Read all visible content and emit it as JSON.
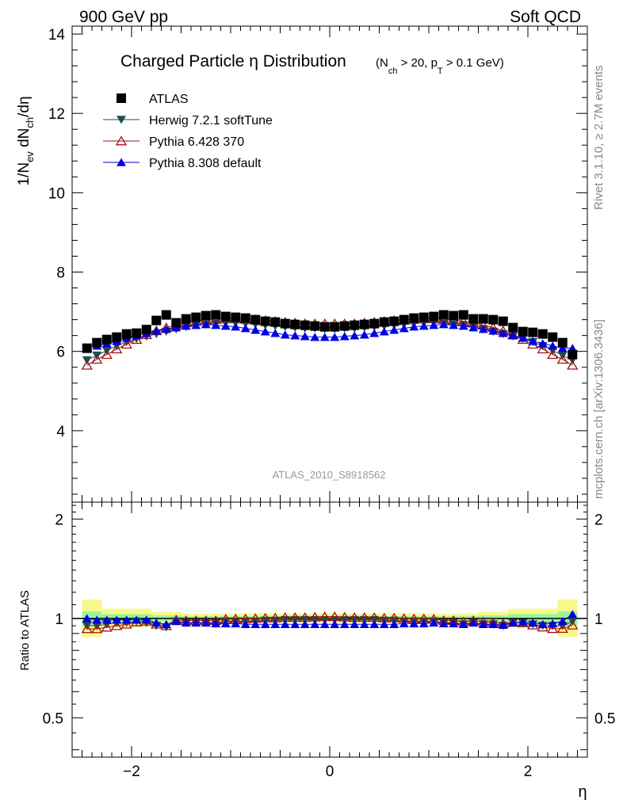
{
  "header": {
    "left": "900 GeV pp",
    "right": "Soft QCD",
    "plot_title": "Charged Particle η Distribution",
    "plot_title_cuts": "(N",
    "cut_sub_ch": "ch",
    "cut_mid": " > 20, p",
    "cut_sub_t": "T",
    "cut_end": " > 0.1 GeV)"
  },
  "side_text": {
    "rivet": "Rivet 3.1.10, ≥ 2.7M events",
    "mcplots": "mcplots.cern.ch [arXiv:1306.3436]"
  },
  "watermark": "ATLAS_2010_S8918562",
  "colors": {
    "atlas": "#000000",
    "herwig": "#1a5050",
    "pythia6": "#a01010",
    "pythia8": "#0000e0",
    "band_inner": "#9af59a",
    "band_outer": "#f8f88a"
  },
  "chart_data": [
    {
      "type": "scatter",
      "title": "Charged Particle η Distribution (N_ch > 20, p_T > 0.1 GeV)",
      "ylabel": "1/N_ev dN_ch/dη",
      "xlabel": "η",
      "xlim": [
        -2.6,
        2.6
      ],
      "ylim": [
        2.2,
        14.2
      ],
      "yticks": [
        4,
        6,
        8,
        10,
        12,
        14
      ],
      "legend_position": "top-left",
      "grid": false,
      "x": [
        -2.45,
        -2.35,
        -2.25,
        -2.15,
        -2.05,
        -1.95,
        -1.85,
        -1.75,
        -1.65,
        -1.55,
        -1.45,
        -1.35,
        -1.25,
        -1.15,
        -1.05,
        -0.95,
        -0.85,
        -0.75,
        -0.65,
        -0.55,
        -0.45,
        -0.35,
        -0.25,
        -0.15,
        -0.05,
        0.05,
        0.15,
        0.25,
        0.35,
        0.45,
        0.55,
        0.65,
        0.75,
        0.85,
        0.95,
        1.05,
        1.15,
        1.25,
        1.35,
        1.45,
        1.55,
        1.65,
        1.75,
        1.85,
        1.95,
        2.05,
        2.15,
        2.25,
        2.35,
        2.45
      ],
      "series": [
        {
          "name": "ATLAS",
          "marker": "square",
          "values": [
            6.08,
            6.22,
            6.3,
            6.36,
            6.44,
            6.46,
            6.55,
            6.78,
            6.92,
            6.72,
            6.82,
            6.86,
            6.9,
            6.92,
            6.88,
            6.86,
            6.84,
            6.8,
            6.76,
            6.74,
            6.7,
            6.68,
            6.66,
            6.64,
            6.62,
            6.62,
            6.64,
            6.66,
            6.68,
            6.7,
            6.74,
            6.76,
            6.8,
            6.84,
            6.86,
            6.88,
            6.92,
            6.9,
            6.92,
            6.82,
            6.82,
            6.8,
            6.76,
            6.6,
            6.5,
            6.48,
            6.44,
            6.36,
            6.22,
            5.92
          ]
        },
        {
          "name": "Herwig 7.2.1 softTune",
          "marker": "triangle-down",
          "values": [
            5.78,
            5.9,
            6.02,
            6.14,
            6.24,
            6.32,
            6.38,
            6.44,
            6.5,
            6.56,
            6.62,
            6.66,
            6.68,
            6.7,
            6.72,
            6.72,
            6.7,
            6.68,
            6.66,
            6.64,
            6.62,
            6.6,
            6.58,
            6.58,
            6.56,
            6.56,
            6.58,
            6.58,
            6.6,
            6.62,
            6.64,
            6.66,
            6.68,
            6.7,
            6.72,
            6.72,
            6.7,
            6.68,
            6.66,
            6.62,
            6.56,
            6.5,
            6.44,
            6.38,
            6.32,
            6.24,
            6.14,
            6.02,
            5.9,
            5.78
          ]
        },
        {
          "name": "Pythia 6.428 370",
          "marker": "triangle-up-open",
          "values": [
            5.65,
            5.8,
            5.92,
            6.06,
            6.18,
            6.3,
            6.42,
            6.52,
            6.6,
            6.66,
            6.72,
            6.76,
            6.8,
            6.82,
            6.84,
            6.84,
            6.82,
            6.8,
            6.78,
            6.76,
            6.74,
            6.72,
            6.7,
            6.7,
            6.7,
            6.7,
            6.7,
            6.7,
            6.72,
            6.74,
            6.76,
            6.78,
            6.8,
            6.82,
            6.84,
            6.84,
            6.82,
            6.8,
            6.76,
            6.72,
            6.66,
            6.6,
            6.52,
            6.42,
            6.3,
            6.18,
            6.06,
            5.92,
            5.8,
            5.65
          ]
        },
        {
          "name": "Pythia 8.308 default",
          "marker": "triangle-up",
          "values": [
            6.08,
            6.14,
            6.2,
            6.26,
            6.34,
            6.4,
            6.46,
            6.52,
            6.56,
            6.6,
            6.64,
            6.66,
            6.68,
            6.66,
            6.64,
            6.62,
            6.58,
            6.54,
            6.5,
            6.46,
            6.42,
            6.4,
            6.38,
            6.36,
            6.36,
            6.36,
            6.38,
            6.4,
            6.42,
            6.46,
            6.5,
            6.54,
            6.58,
            6.62,
            6.64,
            6.66,
            6.68,
            6.66,
            6.64,
            6.6,
            6.56,
            6.52,
            6.46,
            6.4,
            6.34,
            6.26,
            6.2,
            6.14,
            6.08,
            6.08
          ]
        }
      ]
    },
    {
      "type": "scatter",
      "ylabel": "Ratio to ATLAS",
      "xlabel": "η",
      "xlim": [
        -2.6,
        2.6
      ],
      "ylim": [
        0.38,
        2.25
      ],
      "yscale": "log",
      "yticks": [
        0.5,
        1,
        2
      ],
      "xticks": [
        -2,
        0,
        2
      ],
      "reference_line": 1,
      "x": [
        -2.45,
        -2.35,
        -2.25,
        -2.15,
        -2.05,
        -1.95,
        -1.85,
        -1.75,
        -1.65,
        -1.55,
        -1.45,
        -1.35,
        -1.25,
        -1.15,
        -1.05,
        -0.95,
        -0.85,
        -0.75,
        -0.65,
        -0.55,
        -0.45,
        -0.35,
        -0.25,
        -0.15,
        -0.05,
        0.05,
        0.15,
        0.25,
        0.35,
        0.45,
        0.55,
        0.65,
        0.75,
        0.85,
        0.95,
        1.05,
        1.15,
        1.25,
        1.35,
        1.45,
        1.55,
        1.65,
        1.75,
        1.85,
        1.95,
        2.05,
        2.15,
        2.25,
        2.35,
        2.45
      ],
      "uncertainty_bands": [
        {
          "x_range": [
            -2.5,
            -2.3
          ],
          "inner": [
            0.95,
            1.05
          ],
          "outer": [
            0.88,
            1.14
          ]
        },
        {
          "x_range": [
            -2.3,
            -1.8
          ],
          "inner": [
            0.97,
            1.03
          ],
          "outer": [
            0.94,
            1.07
          ]
        },
        {
          "x_range": [
            -1.8,
            -1.5
          ],
          "inner": [
            0.98,
            1.02
          ],
          "outer": [
            0.96,
            1.045
          ]
        },
        {
          "x_range": [
            -1.5,
            1.5
          ],
          "inner": [
            0.985,
            1.015
          ],
          "outer": [
            0.97,
            1.035
          ]
        },
        {
          "x_range": [
            1.5,
            1.8
          ],
          "inner": [
            0.98,
            1.02
          ],
          "outer": [
            0.96,
            1.045
          ]
        },
        {
          "x_range": [
            1.8,
            2.3
          ],
          "inner": [
            0.97,
            1.03
          ],
          "outer": [
            0.94,
            1.07
          ]
        },
        {
          "x_range": [
            2.3,
            2.5
          ],
          "inner": [
            0.95,
            1.05
          ],
          "outer": [
            0.88,
            1.14
          ]
        }
      ],
      "series": [
        {
          "name": "Herwig 7.2.1 softTune",
          "marker": "triangle-down",
          "values": [
            0.95,
            0.95,
            0.96,
            0.97,
            0.97,
            0.98,
            0.97,
            0.95,
            0.94,
            0.98,
            0.97,
            0.97,
            0.97,
            0.97,
            0.98,
            0.98,
            0.98,
            0.98,
            0.985,
            0.985,
            0.99,
            0.99,
            0.99,
            0.99,
            0.99,
            0.99,
            0.99,
            0.99,
            0.99,
            0.99,
            0.985,
            0.985,
            0.98,
            0.98,
            0.98,
            0.98,
            0.97,
            0.97,
            0.96,
            0.97,
            0.96,
            0.96,
            0.95,
            0.97,
            0.97,
            0.96,
            0.95,
            0.95,
            0.95,
            0.98
          ]
        },
        {
          "name": "Pythia 6.428 370",
          "marker": "triangle-up-open",
          "values": [
            0.93,
            0.93,
            0.94,
            0.95,
            0.96,
            0.975,
            0.98,
            0.96,
            0.95,
            0.99,
            0.985,
            0.985,
            0.985,
            0.985,
            0.995,
            0.997,
            0.997,
            1.0,
            1.003,
            1.003,
            1.006,
            1.006,
            1.006,
            1.009,
            1.012,
            1.012,
            1.009,
            1.006,
            1.006,
            1.006,
            1.003,
            1.003,
            1.0,
            0.997,
            0.997,
            0.995,
            0.985,
            0.985,
            0.976,
            0.985,
            0.976,
            0.971,
            0.965,
            0.973,
            0.969,
            0.954,
            0.941,
            0.931,
            0.932,
            0.954
          ]
        },
        {
          "name": "Pythia 8.308 default",
          "marker": "triangle-up",
          "values": [
            1.0,
            0.99,
            0.99,
            0.99,
            0.99,
            0.99,
            0.99,
            0.97,
            0.96,
            0.98,
            0.97,
            0.97,
            0.97,
            0.965,
            0.965,
            0.965,
            0.96,
            0.96,
            0.96,
            0.96,
            0.96,
            0.96,
            0.96,
            0.96,
            0.96,
            0.96,
            0.96,
            0.96,
            0.96,
            0.96,
            0.96,
            0.96,
            0.965,
            0.965,
            0.965,
            0.97,
            0.965,
            0.965,
            0.96,
            0.97,
            0.96,
            0.96,
            0.955,
            0.97,
            0.975,
            0.97,
            0.96,
            0.965,
            0.98,
            1.03
          ]
        }
      ]
    }
  ]
}
